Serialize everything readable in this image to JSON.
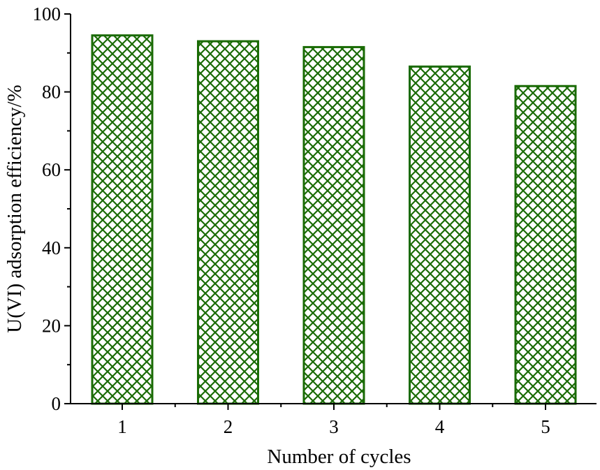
{
  "chart_data": {
    "type": "bar",
    "categories": [
      "1",
      "2",
      "3",
      "4",
      "5"
    ],
    "values": [
      94.5,
      93.0,
      91.5,
      86.5,
      81.5
    ],
    "xlabel": "Number of cycles",
    "ylabel": "U(VI) adsorption efficiency/%",
    "ylim": [
      0,
      100
    ],
    "yticks": [
      "0",
      "20",
      "40",
      "60",
      "80",
      "100"
    ],
    "grid": false,
    "legend": "none",
    "bar_style": "cross-hatched",
    "colors": {
      "bar": "#1a6b05",
      "axis": "#000000",
      "background": "#ffffff"
    }
  }
}
